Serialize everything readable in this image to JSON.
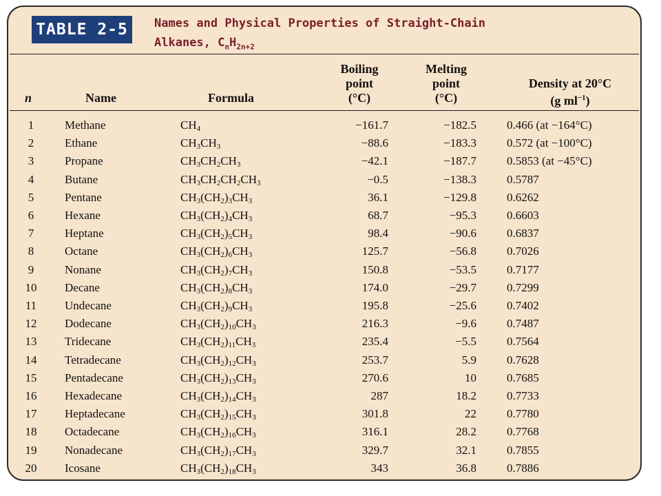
{
  "tag": "TABLE 2-5",
  "title": {
    "line1": "Names and Physical Properties of Straight-Chain",
    "line2_prefix": "Alkanes, C",
    "line2_sub1": "n",
    "line2_mid": "H",
    "line2_sub2": "2n+2"
  },
  "headers": {
    "n": "n",
    "name": "Name",
    "formula": "Formula",
    "boiling": [
      "Boiling",
      "point",
      "(°C)"
    ],
    "melting": [
      "Melting",
      "point",
      "(°C)"
    ],
    "density_line1": "Density at 20°C",
    "density_line2": "(g ml",
    "density_sup": "−1",
    "density_close": ")"
  },
  "rows": [
    {
      "n": "1",
      "name": "Methane",
      "formula": [
        [
          "CH",
          ""
        ],
        [
          "",
          "4"
        ]
      ],
      "bp": "−161.7",
      "mp": "−182.5",
      "density": "0.466 (at −164°C)"
    },
    {
      "n": "2",
      "name": "Ethane",
      "formula": [
        [
          "CH",
          ""
        ],
        [
          "",
          "3"
        ],
        [
          "CH",
          ""
        ],
        [
          "",
          "3"
        ]
      ],
      "bp": "−88.6",
      "mp": "−183.3",
      "density": "0.572 (at −100°C)"
    },
    {
      "n": "3",
      "name": "Propane",
      "formula": [
        [
          "CH",
          ""
        ],
        [
          "",
          "3"
        ],
        [
          "CH",
          ""
        ],
        [
          "",
          "2"
        ],
        [
          "CH",
          ""
        ],
        [
          "",
          "3"
        ]
      ],
      "bp": "−42.1",
      "mp": "−187.7",
      "density": "0.5853 (at −45°C)"
    },
    {
      "n": "4",
      "name": "Butane",
      "formula": [
        [
          "CH",
          ""
        ],
        [
          "",
          "3"
        ],
        [
          "CH",
          ""
        ],
        [
          "",
          "2"
        ],
        [
          "CH",
          ""
        ],
        [
          "",
          "2"
        ],
        [
          "CH",
          ""
        ],
        [
          "",
          "3"
        ]
      ],
      "bp": "−0.5",
      "mp": "−138.3",
      "density": "0.5787"
    },
    {
      "n": "5",
      "name": "Pentane",
      "formula": [
        [
          "CH",
          ""
        ],
        [
          "",
          "3"
        ],
        [
          "(CH",
          ""
        ],
        [
          "",
          "2"
        ],
        [
          ")",
          ""
        ],
        [
          "",
          "3"
        ],
        [
          "CH",
          ""
        ],
        [
          "",
          "3"
        ]
      ],
      "bp": "36.1",
      "mp": "−129.8",
      "density": "0.6262"
    },
    {
      "n": "6",
      "name": "Hexane",
      "formula": [
        [
          "CH",
          ""
        ],
        [
          "",
          "3"
        ],
        [
          "(CH",
          ""
        ],
        [
          "",
          "2"
        ],
        [
          ")",
          ""
        ],
        [
          "",
          "4"
        ],
        [
          "CH",
          ""
        ],
        [
          "",
          "3"
        ]
      ],
      "bp": "68.7",
      "mp": "−95.3",
      "density": "0.6603"
    },
    {
      "n": "7",
      "name": "Heptane",
      "formula": [
        [
          "CH",
          ""
        ],
        [
          "",
          "3"
        ],
        [
          "(CH",
          ""
        ],
        [
          "",
          "2"
        ],
        [
          ")",
          ""
        ],
        [
          "",
          "5"
        ],
        [
          "CH",
          ""
        ],
        [
          "",
          "3"
        ]
      ],
      "bp": "98.4",
      "mp": "−90.6",
      "density": "0.6837"
    },
    {
      "n": "8",
      "name": "Octane",
      "formula": [
        [
          "CH",
          ""
        ],
        [
          "",
          "3"
        ],
        [
          "(CH",
          ""
        ],
        [
          "",
          "2"
        ],
        [
          ")",
          ""
        ],
        [
          "",
          "6"
        ],
        [
          "CH",
          ""
        ],
        [
          "",
          "3"
        ]
      ],
      "bp": "125.7",
      "mp": "−56.8",
      "density": "0.7026"
    },
    {
      "n": "9",
      "name": "Nonane",
      "formula": [
        [
          "CH",
          ""
        ],
        [
          "",
          "3"
        ],
        [
          "(CH",
          ""
        ],
        [
          "",
          "2"
        ],
        [
          ")",
          ""
        ],
        [
          "",
          "7"
        ],
        [
          "CH",
          ""
        ],
        [
          "",
          "3"
        ]
      ],
      "bp": "150.8",
      "mp": "−53.5",
      "density": "0.7177"
    },
    {
      "n": "10",
      "name": "Decane",
      "formula": [
        [
          "CH",
          ""
        ],
        [
          "",
          "3"
        ],
        [
          "(CH",
          ""
        ],
        [
          "",
          "2"
        ],
        [
          ")",
          ""
        ],
        [
          "",
          "8"
        ],
        [
          "CH",
          ""
        ],
        [
          "",
          "3"
        ]
      ],
      "bp": "174.0",
      "mp": "−29.7",
      "density": "0.7299"
    },
    {
      "n": "11",
      "name": "Undecane",
      "formula": [
        [
          "CH",
          ""
        ],
        [
          "",
          "3"
        ],
        [
          "(CH",
          ""
        ],
        [
          "",
          "2"
        ],
        [
          ")",
          ""
        ],
        [
          "",
          "9"
        ],
        [
          "CH",
          ""
        ],
        [
          "",
          "3"
        ]
      ],
      "bp": "195.8",
      "mp": "−25.6",
      "density": "0.7402"
    },
    {
      "n": "12",
      "name": "Dodecane",
      "formula": [
        [
          "CH",
          ""
        ],
        [
          "",
          "3"
        ],
        [
          "(CH",
          ""
        ],
        [
          "",
          "2"
        ],
        [
          ")",
          ""
        ],
        [
          "",
          "10"
        ],
        [
          "CH",
          ""
        ],
        [
          "",
          "3"
        ]
      ],
      "bp": "216.3",
      "mp": "−9.6",
      "density": "0.7487"
    },
    {
      "n": "13",
      "name": "Tridecane",
      "formula": [
        [
          "CH",
          ""
        ],
        [
          "",
          "3"
        ],
        [
          "(CH",
          ""
        ],
        [
          "",
          "2"
        ],
        [
          ")",
          ""
        ],
        [
          "",
          "11"
        ],
        [
          "CH",
          ""
        ],
        [
          "",
          "3"
        ]
      ],
      "bp": "235.4",
      "mp": "−5.5",
      "density": "0.7564"
    },
    {
      "n": "14",
      "name": "Tetradecane",
      "formula": [
        [
          "CH",
          ""
        ],
        [
          "",
          "3"
        ],
        [
          "(CH",
          ""
        ],
        [
          "",
          "2"
        ],
        [
          ")",
          ""
        ],
        [
          "",
          "12"
        ],
        [
          "CH",
          ""
        ],
        [
          "",
          "3"
        ]
      ],
      "bp": "253.7",
      "mp": "5.9",
      "density": "0.7628"
    },
    {
      "n": "15",
      "name": "Pentadecane",
      "formula": [
        [
          "CH",
          ""
        ],
        [
          "",
          "3"
        ],
        [
          "(CH",
          ""
        ],
        [
          "",
          "2"
        ],
        [
          ")",
          ""
        ],
        [
          "",
          "13"
        ],
        [
          "CH",
          ""
        ],
        [
          "",
          "3"
        ]
      ],
      "bp": "270.6",
      "mp": "10",
      "density": "0.7685"
    },
    {
      "n": "16",
      "name": "Hexadecane",
      "formula": [
        [
          "CH",
          ""
        ],
        [
          "",
          "3"
        ],
        [
          "(CH",
          ""
        ],
        [
          "",
          "2"
        ],
        [
          ")",
          ""
        ],
        [
          "",
          "14"
        ],
        [
          "CH",
          ""
        ],
        [
          "",
          "3"
        ]
      ],
      "bp": "287",
      "mp": "18.2",
      "density": "0.7733"
    },
    {
      "n": "17",
      "name": "Heptadecane",
      "formula": [
        [
          "CH",
          ""
        ],
        [
          "",
          "3"
        ],
        [
          "(CH",
          ""
        ],
        [
          "",
          "2"
        ],
        [
          ")",
          ""
        ],
        [
          "",
          "15"
        ],
        [
          "CH",
          ""
        ],
        [
          "",
          "3"
        ]
      ],
      "bp": "301.8",
      "mp": "22",
      "density": "0.7780"
    },
    {
      "n": "18",
      "name": "Octadecane",
      "formula": [
        [
          "CH",
          ""
        ],
        [
          "",
          "3"
        ],
        [
          "(CH",
          ""
        ],
        [
          "",
          "2"
        ],
        [
          ")",
          ""
        ],
        [
          "",
          "16"
        ],
        [
          "CH",
          ""
        ],
        [
          "",
          "3"
        ]
      ],
      "bp": "316.1",
      "mp": "28.2",
      "density": "0.7768"
    },
    {
      "n": "19",
      "name": "Nonadecane",
      "formula": [
        [
          "CH",
          ""
        ],
        [
          "",
          "3"
        ],
        [
          "(CH",
          ""
        ],
        [
          "",
          "2"
        ],
        [
          ")",
          ""
        ],
        [
          "",
          "17"
        ],
        [
          "CH",
          ""
        ],
        [
          "",
          "3"
        ]
      ],
      "bp": "329.7",
      "mp": "32.1",
      "density": "0.7855"
    },
    {
      "n": "20",
      "name": "Icosane",
      "formula": [
        [
          "CH",
          ""
        ],
        [
          "",
          "3"
        ],
        [
          "(CH",
          ""
        ],
        [
          "",
          "2"
        ],
        [
          ")",
          ""
        ],
        [
          "",
          "18"
        ],
        [
          "CH",
          ""
        ],
        [
          "",
          "3"
        ]
      ],
      "bp": "343",
      "mp": "36.8",
      "density": "0.7886"
    }
  ]
}
